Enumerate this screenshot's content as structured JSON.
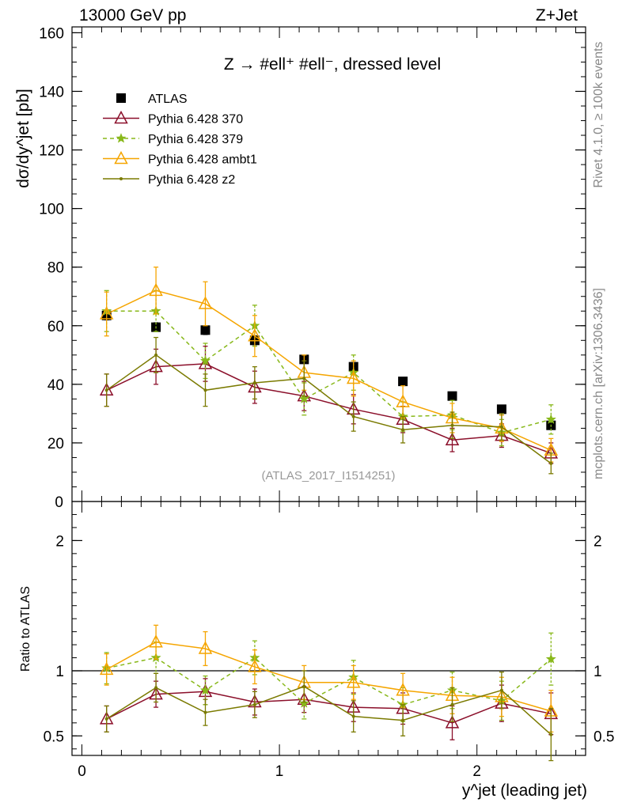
{
  "header": {
    "left": "13000 GeV pp",
    "right": "Z+Jet"
  },
  "side_labels": {
    "rivet": "Rivet 4.1.0, ≥ 100k events",
    "mcplots": "mcplots.cern.ch [arXiv:1306.3436]"
  },
  "watermark": "(ATLAS_2017_I1514251)",
  "chart_data": [
    {
      "type": "scatter",
      "panel": "main",
      "title": "Z → #ell⁺ #ell⁻, dressed level",
      "xlabel": "y^jet (leading jet)",
      "ylabel": "dσ/dy^jet [pb]",
      "xlim": [
        -0.05,
        2.55
      ],
      "ylim": [
        0,
        162
      ],
      "yticks": [
        20,
        40,
        60,
        80,
        100,
        120,
        140,
        160
      ],
      "ytick_labels": [
        "20",
        "40",
        "60",
        "80",
        "100",
        "120",
        "140",
        "160"
      ],
      "x": [
        0.125,
        0.375,
        0.625,
        0.875,
        1.125,
        1.375,
        1.625,
        1.875,
        2.125,
        2.375
      ],
      "series": [
        {
          "name": "ATLAS",
          "color": "#000000",
          "style": "data",
          "values": [
            63.5,
            59.5,
            58.5,
            55.0,
            48.5,
            46.0,
            41.0,
            36.0,
            31.5,
            26.0
          ],
          "errors": [
            1.5,
            1.5,
            1.5,
            1.5,
            1.3,
            1.3,
            1.2,
            1.1,
            1.0,
            1.0
          ]
        },
        {
          "name": "Pythia 6.428 370",
          "color": "#8b0f2a",
          "style": "solid",
          "marker": "triangle-open",
          "values": [
            38.0,
            46.0,
            47.0,
            39.0,
            36.0,
            31.5,
            28.0,
            21.0,
            22.5,
            16.5
          ],
          "errors": [
            5.5,
            6.0,
            6.0,
            5.5,
            5.0,
            5.0,
            4.5,
            4.0,
            4.0,
            3.5
          ]
        },
        {
          "name": "Pythia 6.428 379",
          "color": "#88b81a",
          "style": "dashed",
          "marker": "star",
          "values": [
            65.0,
            65.0,
            48.0,
            60.0,
            35.0,
            44.0,
            29.0,
            29.5,
            23.5,
            28.0
          ],
          "errors": [
            7.0,
            7.0,
            6.0,
            7.0,
            5.5,
            6.0,
            5.0,
            5.0,
            4.5,
            5.0
          ]
        },
        {
          "name": "Pythia 6.428 ambt1",
          "color": "#f5a500",
          "style": "solid",
          "marker": "triangle-open",
          "values": [
            64.0,
            72.0,
            67.5,
            56.5,
            44.0,
            42.0,
            34.0,
            28.5,
            25.0,
            17.5
          ],
          "errors": [
            7.5,
            8.0,
            7.5,
            7.0,
            6.0,
            6.0,
            5.5,
            5.0,
            4.5,
            4.0
          ]
        },
        {
          "name": "Pythia 6.428 z2",
          "color": "#7a7a00",
          "style": "solid",
          "marker": "dot",
          "values": [
            38.0,
            50.0,
            38.0,
            40.5,
            42.0,
            29.0,
            24.5,
            26.0,
            25.5,
            13.0
          ],
          "errors": [
            5.5,
            6.0,
            5.5,
            5.5,
            6.0,
            5.0,
            4.5,
            4.5,
            4.5,
            3.5
          ]
        }
      ]
    },
    {
      "type": "scatter",
      "panel": "ratio",
      "ylabel": "Ratio to ATLAS",
      "xlabel": "y^jet (leading jet)",
      "xlim": [
        -0.05,
        2.55
      ],
      "ylim": [
        0.35,
        2.3
      ],
      "yticks": [
        0.5,
        1,
        2
      ],
      "ytick_labels": [
        "0.5",
        "1",
        "2"
      ],
      "xticks": [
        0,
        1,
        2
      ],
      "xtick_labels": [
        "0",
        "1",
        "2"
      ],
      "reference_line": 1,
      "x": [
        0.125,
        0.375,
        0.625,
        0.875,
        1.125,
        1.375,
        1.625,
        1.875,
        2.125,
        2.375
      ],
      "series": [
        {
          "name": "Pythia 6.428 370",
          "color": "#8b0f2a",
          "values": [
            0.63,
            0.82,
            0.84,
            0.76,
            0.78,
            0.72,
            0.71,
            0.6,
            0.75,
            0.67
          ],
          "errors": [
            0.1,
            0.1,
            0.1,
            0.1,
            0.1,
            0.11,
            0.12,
            0.13,
            0.14,
            0.16
          ]
        },
        {
          "name": "Pythia 6.428 379",
          "color": "#88b81a",
          "values": [
            1.02,
            1.1,
            0.85,
            1.1,
            0.75,
            0.95,
            0.74,
            0.85,
            0.77,
            1.09
          ],
          "errors": [
            0.12,
            0.12,
            0.11,
            0.13,
            0.12,
            0.13,
            0.13,
            0.14,
            0.15,
            0.2
          ]
        },
        {
          "name": "Pythia 6.428 ambt1",
          "color": "#f5a500",
          "values": [
            1.01,
            1.22,
            1.17,
            1.03,
            0.91,
            0.91,
            0.85,
            0.81,
            0.8,
            0.69
          ],
          "errors": [
            0.12,
            0.13,
            0.13,
            0.13,
            0.13,
            0.13,
            0.13,
            0.14,
            0.15,
            0.16
          ]
        },
        {
          "name": "Pythia 6.428 z2",
          "color": "#7a7a00",
          "values": [
            0.63,
            0.87,
            0.68,
            0.74,
            0.88,
            0.65,
            0.62,
            0.74,
            0.85,
            0.51
          ],
          "errors": [
            0.1,
            0.11,
            0.1,
            0.1,
            0.12,
            0.12,
            0.12,
            0.13,
            0.14,
            0.2
          ]
        }
      ]
    }
  ]
}
